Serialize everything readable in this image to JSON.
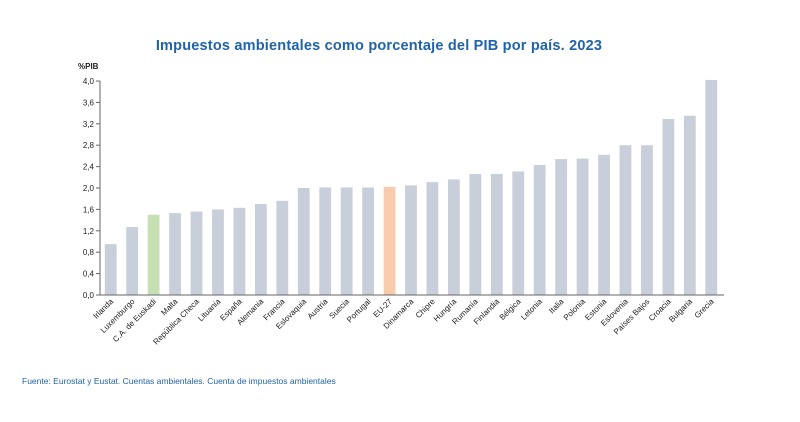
{
  "chart_data": {
    "type": "bar",
    "title": "Impuestos ambientales como porcentaje del PIB por país. 2023",
    "ylabel": "%PIB",
    "xlabel": "",
    "ylim": [
      0,
      4.0
    ],
    "yticks": [
      "0,0",
      "0,4",
      "0,8",
      "1,2",
      "1,6",
      "2,0",
      "2,4",
      "2,8",
      "3,2",
      "3,6",
      "4,0"
    ],
    "categories": [
      "Irlanda",
      "Luxemburgo",
      "C.A. de Euskadi",
      "Malta",
      "República Checa",
      "Lituania",
      "España",
      "Alemania",
      "Francia",
      "Eslovaquia",
      "Austria",
      "Suecia",
      "Portugal",
      "EU-27",
      "Dinamarca",
      "Chipre",
      "Hungría",
      "Rumanía",
      "Finlandia",
      "Bélgica",
      "Letonia",
      "Italia",
      "Polonia",
      "Estonia",
      "Eslovenia",
      "Países Bajos",
      "Croacia",
      "Bulgaria",
      "Grecia"
    ],
    "values": [
      0.95,
      1.27,
      1.5,
      1.53,
      1.56,
      1.6,
      1.63,
      1.7,
      1.76,
      2.0,
      2.01,
      2.01,
      2.01,
      2.02,
      2.05,
      2.11,
      2.16,
      2.26,
      2.26,
      2.31,
      2.43,
      2.54,
      2.55,
      2.62,
      2.8,
      2.8,
      3.29,
      3.35,
      4.02
    ],
    "colors": {
      "default": "#c8ceda",
      "C.A. de Euskadi": "#c6e0b4",
      "EU-27": "#f8cbad"
    },
    "grid": false
  },
  "source": "Fuente: Eurostat y Eustat. Cuentas ambientales. Cuenta de impuestos ambientales"
}
